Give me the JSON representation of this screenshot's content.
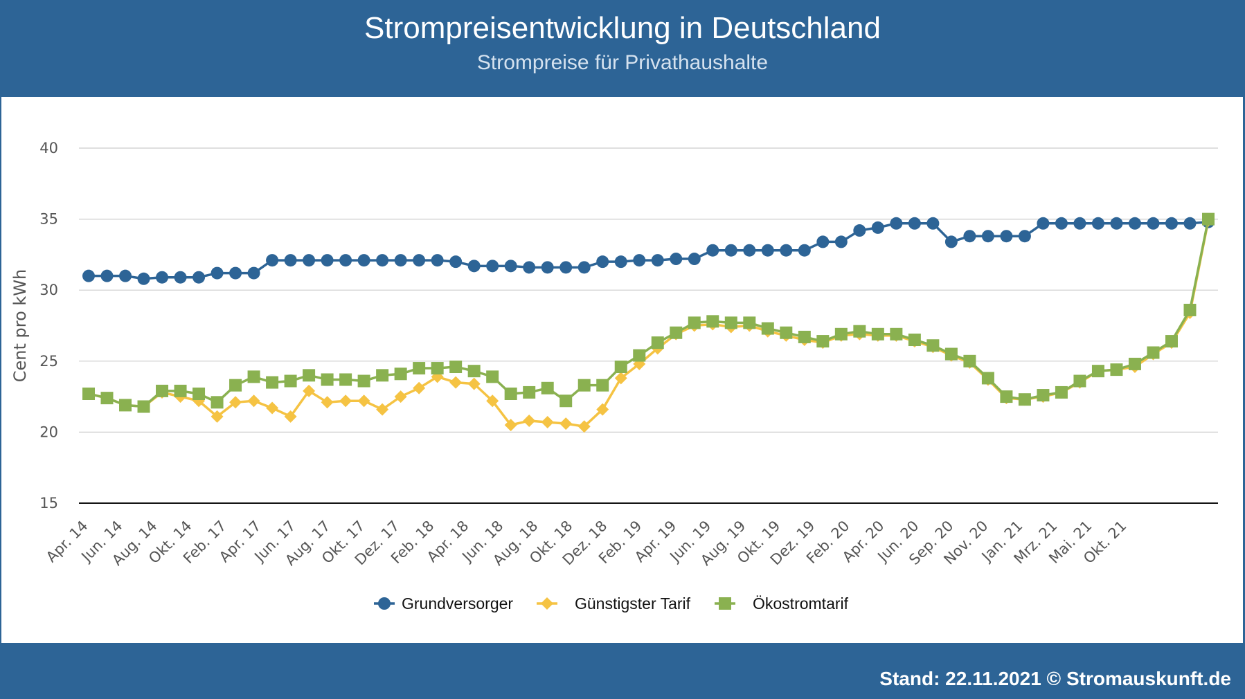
{
  "header": {
    "title": "Strompreisentwicklung in Deutschland",
    "subtitle": "Strompreise für Privathaushalte"
  },
  "footer": {
    "text": "Stand: 22.11.2021 © Stromauskunft.de"
  },
  "colors": {
    "header_bg": "#2d6496",
    "grundversorger": "#2d6496",
    "guenstigster": "#f5c343",
    "oeko": "#8ab150"
  },
  "chart_data": {
    "type": "line",
    "title": "Strompreisentwicklung in Deutschland",
    "subtitle": "Strompreise für Privathaushalte",
    "xlabel": "",
    "ylabel": "Cent pro kWh",
    "ylim": [
      15,
      40
    ],
    "yticks": [
      15,
      20,
      25,
      30,
      35,
      40
    ],
    "grid": true,
    "legend_position": "bottom",
    "x_tick_labels": [
      "Apr. 14",
      "Jun. 14",
      "Aug. 14",
      "Okt. 14",
      "Feb. 17",
      "Apr. 17",
      "Jun. 17",
      "Aug. 17",
      "Okt. 17",
      "Dez. 17",
      "Feb. 18",
      "Apr. 18",
      "Jun. 18",
      "Aug. 18",
      "Okt. 18",
      "Dez. 18",
      "Feb. 19",
      "Apr. 19",
      "Jun. 19",
      "Aug. 19",
      "Okt. 19",
      "Dez. 19",
      "Feb. 20",
      "Apr. 20",
      "Jun. 20",
      "Sep. 20",
      "Nov. 20",
      "Jan. 21",
      "Mrz. 21",
      "Mai. 21",
      "Okt. 21"
    ],
    "series": [
      {
        "name": "Grundversorger",
        "marker": "circle",
        "values": [
          31.0,
          31.0,
          31.0,
          30.8,
          30.9,
          30.9,
          30.9,
          31.2,
          31.2,
          31.2,
          32.1,
          32.1,
          32.1,
          32.1,
          32.1,
          32.1,
          32.1,
          32.1,
          32.1,
          32.1,
          32.0,
          31.7,
          31.7,
          31.7,
          31.6,
          31.6,
          31.6,
          31.6,
          32.0,
          32.0,
          32.1,
          32.1,
          32.2,
          32.2,
          32.8,
          32.8,
          32.8,
          32.8,
          32.8,
          32.8,
          33.4,
          33.4,
          34.2,
          34.4,
          34.7,
          34.7,
          34.7,
          33.4,
          33.8,
          33.8,
          33.8,
          33.8,
          34.7,
          34.7,
          34.7,
          34.7,
          34.7,
          34.7,
          34.7,
          34.7,
          34.7,
          34.8
        ]
      },
      {
        "name": "Günstigster Tarif",
        "marker": "diamond",
        "values": [
          22.7,
          22.4,
          21.9,
          21.8,
          22.8,
          22.5,
          22.2,
          21.1,
          22.1,
          22.2,
          21.7,
          21.1,
          22.9,
          22.1,
          22.2,
          22.2,
          21.6,
          22.5,
          23.1,
          23.9,
          23.5,
          23.4,
          22.2,
          20.5,
          20.8,
          20.7,
          20.6,
          20.4,
          21.6,
          23.8,
          24.8,
          25.9,
          26.9,
          27.5,
          27.6,
          27.4,
          27.5,
          27.1,
          26.8,
          26.5,
          26.3,
          26.8,
          26.9,
          26.8,
          26.8,
          26.4,
          26.0,
          25.4,
          24.9,
          23.7,
          22.4,
          22.3,
          22.5,
          22.8,
          23.5,
          24.3,
          24.4,
          24.6,
          25.5,
          26.3,
          28.4,
          34.9
        ]
      },
      {
        "name": "Ökostromtarif",
        "marker": "square",
        "values": [
          22.7,
          22.4,
          21.9,
          21.8,
          22.9,
          22.9,
          22.7,
          22.1,
          23.3,
          23.9,
          23.5,
          23.6,
          24.0,
          23.7,
          23.7,
          23.6,
          24.0,
          24.1,
          24.5,
          24.5,
          24.6,
          24.3,
          23.9,
          22.7,
          22.8,
          23.1,
          22.2,
          23.3,
          23.3,
          24.6,
          25.4,
          26.3,
          27.0,
          27.7,
          27.8,
          27.7,
          27.7,
          27.3,
          27.0,
          26.7,
          26.4,
          26.9,
          27.1,
          26.9,
          26.9,
          26.5,
          26.1,
          25.5,
          25.0,
          23.8,
          22.5,
          22.3,
          22.6,
          22.8,
          23.6,
          24.3,
          24.4,
          24.8,
          25.6,
          26.4,
          28.6,
          35.0
        ]
      }
    ]
  }
}
